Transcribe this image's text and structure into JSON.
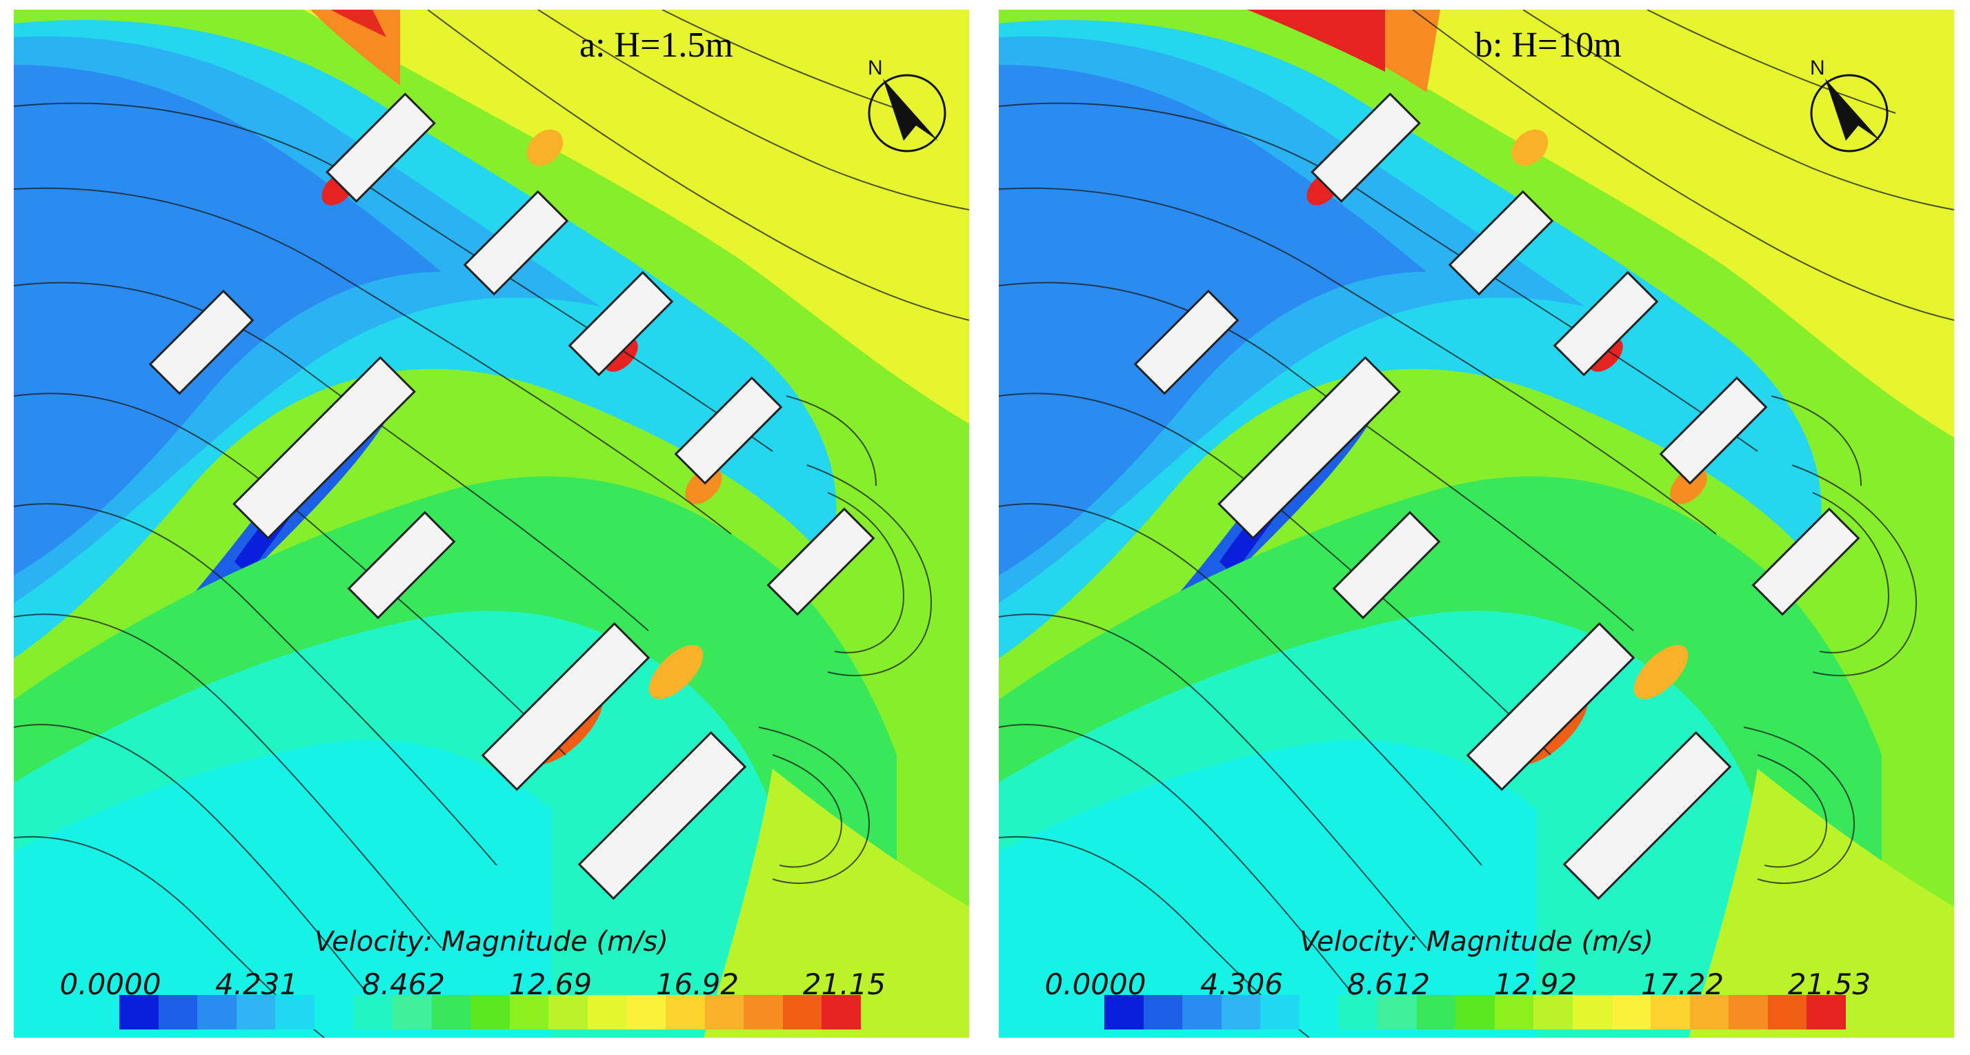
{
  "panels": [
    {
      "id": "a",
      "title": "a: H=1.5m",
      "legend_title": "Velocity: Magnitude (m/s)",
      "legend_ticks": [
        "0.0000",
        "4.231",
        "8.462",
        "12.69",
        "16.92",
        "21.15"
      ]
    },
    {
      "id": "b",
      "title": "b: H=10m",
      "legend_title": "Velocity: Magnitude (m/s)",
      "legend_ticks": [
        "0.0000",
        "4.306",
        "8.612",
        "12.92",
        "17.22",
        "21.53"
      ]
    }
  ],
  "north_label": "N",
  "colormap": [
    "#0a1fdc",
    "#1c5fe6",
    "#2a8cf0",
    "#2fb4f5",
    "#1fd8f2",
    "#17f2e6",
    "#22f5c4",
    "#3ff09a",
    "#39e85a",
    "#5be81e",
    "#8cef1f",
    "#bbf32a",
    "#e4f72e",
    "#fbf13b",
    "#fcd22c",
    "#fab12a",
    "#f68d20",
    "#ef5e14",
    "#e52320"
  ]
}
